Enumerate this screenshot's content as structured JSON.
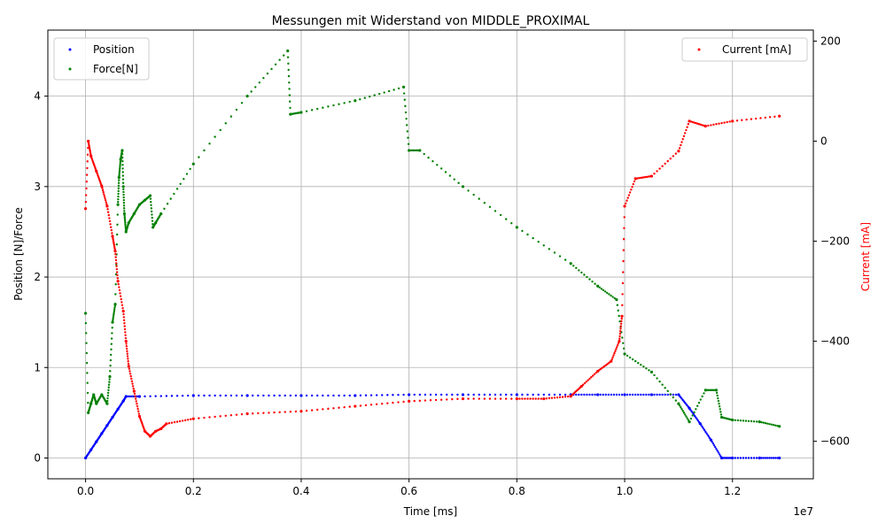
{
  "chart_data": {
    "type": "scatter",
    "title": "Messungen mit Widerstand von MIDDLE_PROXIMAL",
    "xlabel": "Time [ms]",
    "x_multiplier": "1e7",
    "xlim": [
      -0.07,
      1.35
    ],
    "x_ticks": [
      0.0,
      0.2,
      0.4,
      0.6,
      0.8,
      1.0,
      1.2
    ],
    "x_tick_labels": [
      "0.0",
      "0.2",
      "0.4",
      "0.6",
      "0.8",
      "1.0",
      "1.2"
    ],
    "ylabel_left": "Position [N]/Force",
    "ylim_left": [
      -0.23,
      4.73
    ],
    "y_ticks_left": [
      0,
      1,
      2,
      3,
      4
    ],
    "ylabel_right": "Current [mA]",
    "ylabel_right_color": "#ff0000",
    "ylim_right": [
      -675,
      222
    ],
    "y_ticks_right": [
      -600,
      -400,
      -200,
      0,
      200
    ],
    "y_tick_labels_right": [
      "−600",
      "−400",
      "−200",
      "0",
      "200"
    ],
    "grid": true,
    "legend_left": {
      "placement": "upper-left",
      "entries": [
        {
          "name": "Position",
          "color": "#0000ff"
        },
        {
          "name": "Force[N]",
          "color": "#008000"
        }
      ]
    },
    "legend_right": {
      "placement": "upper-right",
      "entries": [
        {
          "name": "Current [mA]",
          "color": "#ff0000"
        }
      ]
    },
    "series": [
      {
        "name": "Position",
        "axis": "left",
        "color": "#0000ff",
        "x": [
          0.0,
          0.01,
          0.02,
          0.03,
          0.04,
          0.05,
          0.06,
          0.07,
          0.075,
          0.1,
          0.2,
          0.3,
          0.4,
          0.5,
          0.6,
          0.7,
          0.8,
          0.9,
          0.95,
          1.0,
          1.05,
          1.1,
          1.12,
          1.14,
          1.16,
          1.18,
          1.2,
          1.25,
          1.287
        ],
        "y": [
          0.0,
          0.09,
          0.18,
          0.27,
          0.36,
          0.45,
          0.54,
          0.63,
          0.68,
          0.68,
          0.69,
          0.69,
          0.69,
          0.69,
          0.7,
          0.7,
          0.7,
          0.7,
          0.7,
          0.7,
          0.7,
          0.7,
          0.55,
          0.38,
          0.2,
          0.0,
          0.0,
          0.0,
          0.0
        ]
      },
      {
        "name": "Force[N]",
        "axis": "left",
        "color": "#008000",
        "x": [
          0.0,
          0.005,
          0.01,
          0.015,
          0.02,
          0.03,
          0.04,
          0.045,
          0.05,
          0.055,
          0.06,
          0.062,
          0.065,
          0.068,
          0.07,
          0.072,
          0.075,
          0.08,
          0.09,
          0.1,
          0.11,
          0.12,
          0.125,
          0.13,
          0.14,
          0.2,
          0.3,
          0.375,
          0.38,
          0.4,
          0.5,
          0.59,
          0.6,
          0.62,
          0.7,
          0.8,
          0.9,
          0.95,
          0.985,
          1.0,
          1.05,
          1.1,
          1.12,
          1.15,
          1.17,
          1.18,
          1.2,
          1.25,
          1.287
        ],
        "y": [
          1.6,
          0.5,
          0.6,
          0.7,
          0.6,
          0.7,
          0.6,
          0.9,
          1.5,
          1.7,
          2.8,
          3.1,
          3.3,
          3.4,
          3.0,
          2.7,
          2.5,
          2.6,
          2.7,
          2.8,
          2.85,
          2.9,
          2.55,
          2.6,
          2.7,
          3.25,
          4.0,
          4.5,
          3.8,
          3.82,
          3.95,
          4.1,
          3.4,
          3.4,
          3.0,
          2.55,
          2.15,
          1.9,
          1.75,
          1.15,
          0.95,
          0.6,
          0.4,
          0.75,
          0.75,
          0.45,
          0.42,
          0.4,
          0.35
        ]
      },
      {
        "name": "Current [mA]",
        "axis": "right",
        "color": "#ff0000",
        "x": [
          0.0,
          0.005,
          0.01,
          0.02,
          0.03,
          0.04,
          0.05,
          0.055,
          0.06,
          0.07,
          0.075,
          0.08,
          0.09,
          0.1,
          0.11,
          0.12,
          0.13,
          0.14,
          0.15,
          0.2,
          0.3,
          0.4,
          0.5,
          0.6,
          0.7,
          0.8,
          0.85,
          0.9,
          0.92,
          0.95,
          0.975,
          0.99,
          0.995,
          1.0,
          1.02,
          1.05,
          1.1,
          1.12,
          1.15,
          1.2,
          1.287
        ],
        "y": [
          -135,
          0,
          -30,
          -60,
          -90,
          -130,
          -190,
          -220,
          -280,
          -340,
          -400,
          -450,
          -500,
          -550,
          -580,
          -590,
          -580,
          -575,
          -565,
          -555,
          -545,
          -540,
          -530,
          -520,
          -515,
          -515,
          -515,
          -510,
          -490,
          -460,
          -440,
          -400,
          -350,
          -130,
          -75,
          -70,
          -20,
          40,
          30,
          40,
          50
        ]
      }
    ]
  }
}
